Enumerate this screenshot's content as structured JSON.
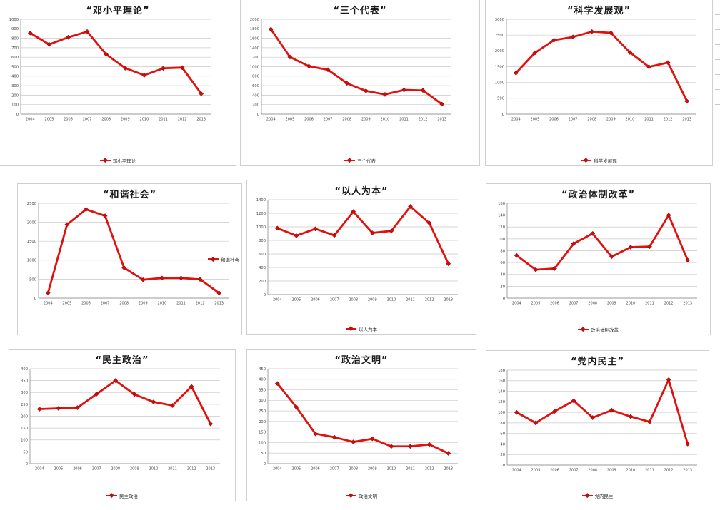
{
  "colors": {
    "series": "#e01210",
    "marker": "#cf0b0b",
    "marker_edge": "#7d0000",
    "grid": "#c9c9c9",
    "axis": "#999999",
    "tick_text": "#444444",
    "title_text": "#1a1a1a",
    "legend_text": "#333333",
    "panel_border": "#cfcfcf"
  },
  "chart_data": [
    {
      "type": "line",
      "title": "“邓小平理论”",
      "legend": "邓小平理论",
      "legend_position": "bottom",
      "x": [
        "2004",
        "2005",
        "2006",
        "2007",
        "2008",
        "2009",
        "2010",
        "2011",
        "2012",
        "2013"
      ],
      "values": [
        855,
        735,
        810,
        870,
        630,
        485,
        410,
        483,
        490,
        215
      ],
      "ylim": [
        0,
        1000
      ],
      "ytick_step": 100,
      "grid": true
    },
    {
      "type": "line",
      "title": "“三个代表”",
      "legend": "三个代表",
      "legend_position": "bottom",
      "x": [
        "2004",
        "2005",
        "2006",
        "2007",
        "2008",
        "2009",
        "2010",
        "2011",
        "2012",
        "2013"
      ],
      "values": [
        1790,
        1205,
        1010,
        935,
        650,
        490,
        415,
        510,
        500,
        210
      ],
      "ylim": [
        0,
        2000
      ],
      "ytick_step": 200,
      "grid": true
    },
    {
      "type": "line",
      "title": "“科学发展观”",
      "legend": "科学发展观",
      "legend_position": "bottom",
      "x": [
        "2004",
        "2005",
        "2006",
        "2007",
        "2008",
        "2009",
        "2010",
        "2011",
        "2012",
        "2013"
      ],
      "values": [
        1300,
        1940,
        2340,
        2440,
        2610,
        2570,
        1950,
        1495,
        1630,
        410
      ],
      "ylim": [
        0,
        3000
      ],
      "ytick_step": 500,
      "grid": true
    },
    {
      "type": "line",
      "title": "“和谐社会”",
      "legend": "和谐社会",
      "legend_position": "right",
      "x": [
        "2004",
        "2005",
        "2006",
        "2007",
        "2008",
        "2009",
        "2010",
        "2011",
        "2012",
        "2013"
      ],
      "values": [
        140,
        1940,
        2340,
        2170,
        800,
        485,
        530,
        530,
        495,
        135
      ],
      "ylim": [
        0,
        2500
      ],
      "ytick_step": 500,
      "grid": true
    },
    {
      "type": "line",
      "title": "“以人为本”",
      "legend": "以人为本",
      "legend_position": "bottom",
      "x": [
        "2004",
        "2005",
        "2006",
        "2007",
        "2008",
        "2009",
        "2010",
        "2011",
        "2012",
        "2013"
      ],
      "values": [
        980,
        870,
        970,
        875,
        1225,
        910,
        940,
        1300,
        1055,
        455
      ],
      "ylim": [
        0,
        1400
      ],
      "ytick_step": 200,
      "grid": true
    },
    {
      "type": "line",
      "title": "“政治体制改革”",
      "legend": "政治体制改革",
      "legend_position": "bottom",
      "x": [
        "2004",
        "2005",
        "2006",
        "2007",
        "2008",
        "2009",
        "2010",
        "2011",
        "2012",
        "2013"
      ],
      "values": [
        72,
        48,
        50,
        92,
        109,
        70,
        86,
        87,
        140,
        64
      ],
      "ylim": [
        0,
        160
      ],
      "ytick_step": 20,
      "grid": true
    },
    {
      "type": "line",
      "title": "“民主政治”",
      "legend": "民主政治",
      "legend_position": "bottom",
      "x": [
        "2004",
        "2005",
        "2006",
        "2007",
        "2008",
        "2009",
        "2010",
        "2011",
        "2012",
        "2013"
      ],
      "values": [
        230,
        233,
        236,
        293,
        350,
        292,
        260,
        245,
        325,
        168
      ],
      "ylim": [
        0,
        400
      ],
      "ytick_step": 50,
      "grid": true
    },
    {
      "type": "line",
      "title": "“政治文明”",
      "legend": "政治文明",
      "legend_position": "bottom",
      "x": [
        "2004",
        "2005",
        "2006",
        "2007",
        "2008",
        "2009",
        "2010",
        "2011",
        "2012",
        "2013"
      ],
      "values": [
        380,
        268,
        142,
        125,
        103,
        118,
        82,
        82,
        91,
        49
      ],
      "ylim": [
        0,
        450
      ],
      "ytick_step": 50,
      "grid": true
    },
    {
      "type": "line",
      "title": "“党内民主”",
      "legend": "党内民主",
      "legend_position": "bottom",
      "x": [
        "2004",
        "2005",
        "2006",
        "2007",
        "2008",
        "2009",
        "2010",
        "2011",
        "2012",
        "2013"
      ],
      "values": [
        100,
        80,
        102,
        122,
        90,
        104,
        92,
        82,
        162,
        40
      ],
      "ylim": [
        0,
        180
      ],
      "ytick_step": 20,
      "grid": true
    }
  ]
}
